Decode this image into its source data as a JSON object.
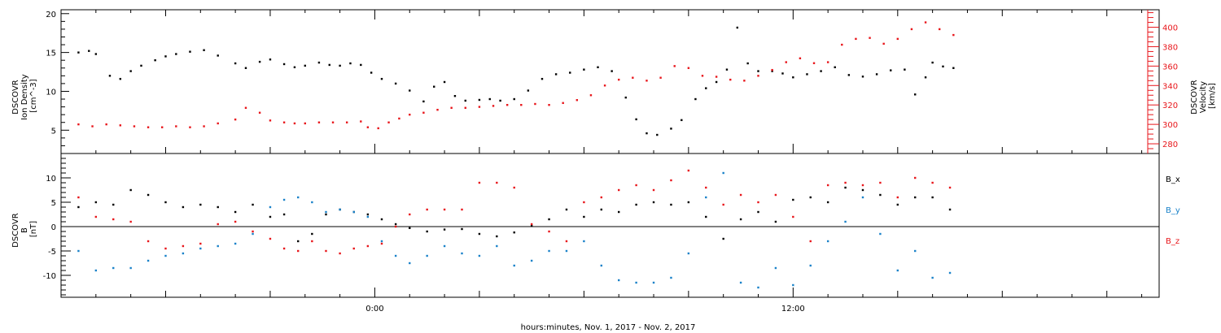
{
  "chart_data": [
    {
      "type": "scatter",
      "ylabel_lines": [
        "DSCOVR",
        "Ion Density",
        "[cm^-3]"
      ],
      "y2label_lines": [
        "DSCOVR",
        "Velocity",
        "[km/s]"
      ],
      "ylim": [
        2,
        20.5
      ],
      "y2lim": [
        270,
        418
      ],
      "y_ticks": [
        "5",
        "10",
        "15",
        "20"
      ],
      "y2_ticks": [
        "280",
        "300",
        "320",
        "340",
        "360",
        "380",
        "400"
      ],
      "series": [
        {
          "color": "#000000",
          "axis": "left",
          "x": [
            -8.5,
            -8.2,
            -8.0,
            -7.6,
            -7.3,
            -7.0,
            -6.7,
            -6.3,
            -6.0,
            -5.7,
            -5.3,
            -4.9,
            -4.5,
            -4.0,
            -3.7,
            -3.3,
            -3.0,
            -2.6,
            -2.3,
            -2.0,
            -1.6,
            -1.3,
            -1.0,
            -0.7,
            -0.4,
            -0.1,
            0.2,
            0.6,
            1.0,
            1.4,
            1.7,
            2.0,
            2.3,
            2.6,
            3.0,
            3.3,
            3.6,
            4.0,
            4.4,
            4.8,
            5.2,
            5.6,
            6.0,
            6.4,
            6.8,
            7.2,
            7.5,
            7.8,
            8.1,
            8.5,
            8.8,
            9.2,
            9.5,
            9.8,
            10.1,
            10.4,
            10.7,
            11.0,
            11.4,
            11.7,
            12.0,
            12.4,
            12.8,
            13.2,
            13.6,
            14.0,
            14.4,
            14.8,
            15.2,
            15.5,
            15.8,
            16.0,
            16.3,
            16.6
          ],
          "y": [
            15.0,
            15.2,
            14.8,
            12.0,
            11.6,
            12.6,
            13.3,
            14.0,
            14.5,
            14.8,
            15.1,
            15.3,
            14.6,
            13.6,
            13.0,
            13.8,
            14.1,
            13.5,
            13.1,
            13.3,
            13.7,
            13.4,
            13.3,
            13.6,
            13.4,
            12.4,
            11.6,
            11.0,
            10.1,
            8.7,
            10.6,
            11.2,
            9.4,
            8.8,
            8.9,
            9.0,
            8.8,
            9.0,
            10.1,
            11.6,
            12.2,
            12.4,
            12.8,
            13.1,
            12.6,
            9.2,
            6.4,
            4.6,
            4.4,
            5.2,
            6.3,
            9.0,
            10.4,
            11.2,
            12.8,
            18.2,
            13.6,
            12.6,
            12.6,
            12.3,
            11.8,
            12.2,
            12.6,
            13.1,
            12.1,
            11.9,
            12.2,
            12.7,
            12.8,
            9.6,
            11.8,
            13.7,
            13.2,
            13.0
          ]
        },
        {
          "color": "#e8161b",
          "axis": "right",
          "x": [
            -8.5,
            -8.1,
            -7.7,
            -7.3,
            -6.9,
            -6.5,
            -6.1,
            -5.7,
            -5.3,
            -4.9,
            -4.5,
            -4.0,
            -3.7,
            -3.3,
            -3.0,
            -2.6,
            -2.3,
            -2.0,
            -1.6,
            -1.2,
            -0.8,
            -0.4,
            -0.2,
            0.1,
            0.4,
            0.7,
            1.0,
            1.4,
            1.8,
            2.2,
            2.6,
            3.0,
            3.4,
            3.8,
            4.2,
            4.6,
            5.0,
            5.4,
            5.8,
            6.2,
            6.6,
            7.0,
            7.4,
            7.8,
            8.2,
            8.6,
            9.0,
            9.4,
            9.8,
            10.2,
            10.6,
            11.0,
            11.4,
            11.8,
            12.2,
            12.6,
            13.0,
            13.4,
            13.8,
            14.2,
            14.6,
            15.0,
            15.4,
            15.8,
            16.2,
            16.6
          ],
          "y": [
            300,
            298,
            300,
            299,
            298,
            297,
            297,
            298,
            297,
            298,
            301,
            305,
            317,
            312,
            304,
            302,
            301,
            301,
            302,
            302,
            302,
            303,
            297,
            296,
            302,
            306,
            310,
            312,
            315,
            317,
            317,
            318,
            319,
            320,
            320,
            321,
            320,
            322,
            325,
            330,
            340,
            346,
            348,
            345,
            348,
            360,
            358,
            350,
            349,
            346,
            345,
            350,
            356,
            364,
            368,
            363,
            364,
            382,
            388,
            389,
            383,
            388,
            398,
            405,
            398,
            392
          ]
        }
      ]
    },
    {
      "type": "scatter",
      "ylabel_lines": [
        "DSCOVR",
        "B",
        "[nT]"
      ],
      "ylim": [
        -14.5,
        15
      ],
      "y_ticks": [
        "-10",
        "-5",
        "0",
        "5",
        "10"
      ],
      "legend": [
        "B_x",
        "B_y",
        "B_z"
      ],
      "xlabel": "hours:minutes, Nov.  1, 2017 - Nov.  2, 2017",
      "x_ticks": [
        "0:00",
        "12:00"
      ],
      "xlim": [
        -9.0,
        22.5
      ],
      "series": [
        {
          "name": "B_x",
          "color": "#000000",
          "x": [
            -8.5,
            -8.0,
            -7.5,
            -7.0,
            -6.5,
            -6.0,
            -5.5,
            -5.0,
            -4.5,
            -4.0,
            -3.5,
            -3.0,
            -2.6,
            -2.2,
            -1.8,
            -1.4,
            -1.0,
            -0.6,
            -0.2,
            0.2,
            0.6,
            1.0,
            1.5,
            2.0,
            2.5,
            3.0,
            3.5,
            4.0,
            4.5,
            5.0,
            5.5,
            6.0,
            6.5,
            7.0,
            7.5,
            8.0,
            8.5,
            9.0,
            9.5,
            10.0,
            10.5,
            11.0,
            11.5,
            12.0,
            12.5,
            13.0,
            13.5,
            14.0,
            14.5,
            15.0,
            15.5,
            16.0,
            16.5
          ],
          "y": [
            4.0,
            5.0,
            4.5,
            7.5,
            6.5,
            5.0,
            4.0,
            4.5,
            4.0,
            3.0,
            4.5,
            2.0,
            2.5,
            -3.0,
            -1.5,
            2.5,
            3.5,
            3.0,
            2.5,
            1.5,
            0.5,
            -0.3,
            -1.0,
            -0.6,
            -0.5,
            -1.5,
            -2.0,
            -1.2,
            0.2,
            1.5,
            3.5,
            2.0,
            3.5,
            3.0,
            4.5,
            5.0,
            4.5,
            5.0,
            2.0,
            -2.5,
            1.5,
            3.0,
            1.0,
            5.5,
            6.0,
            5.0,
            8.0,
            7.5,
            6.5,
            4.5,
            6.0,
            6.0,
            3.5
          ]
        },
        {
          "name": "B_y",
          "color": "#1a82c9",
          "x": [
            -8.5,
            -8.0,
            -7.5,
            -7.0,
            -6.5,
            -6.0,
            -5.5,
            -5.0,
            -4.5,
            -4.0,
            -3.5,
            -3.0,
            -2.6,
            -2.2,
            -1.8,
            -1.4,
            -1.0,
            -0.6,
            -0.2,
            0.2,
            0.6,
            1.0,
            1.5,
            2.0,
            2.5,
            3.0,
            3.5,
            4.0,
            4.5,
            5.0,
            5.5,
            6.0,
            6.5,
            7.0,
            7.5,
            8.0,
            8.5,
            9.0,
            9.5,
            10.0,
            10.5,
            11.0,
            11.5,
            12.0,
            12.5,
            13.0,
            13.5,
            14.0,
            14.5,
            15.0,
            15.5,
            16.0,
            16.5
          ],
          "y": [
            -5.0,
            -9.0,
            -8.5,
            -8.5,
            -7.0,
            -6.0,
            -5.5,
            -4.5,
            -4.0,
            -3.5,
            -1.5,
            4.0,
            5.5,
            6.0,
            5.0,
            3.0,
            3.5,
            3.0,
            2.0,
            -3.0,
            -6.0,
            -7.5,
            -6.0,
            -4.0,
            -5.5,
            -6.0,
            -4.0,
            -8.0,
            -7.0,
            -5.0,
            -5.0,
            -3.0,
            -8.0,
            -11.0,
            -11.5,
            -11.5,
            -10.5,
            -5.5,
            6.0,
            11.0,
            -11.5,
            -12.5,
            -8.5,
            -12.0,
            -8.0,
            -3.0,
            1.0,
            6.0,
            -1.5,
            -9.0,
            -5.0,
            -10.5,
            -9.5
          ]
        },
        {
          "name": "B_z",
          "color": "#e8161b",
          "x": [
            -8.5,
            -8.0,
            -7.5,
            -7.0,
            -6.5,
            -6.0,
            -5.5,
            -5.0,
            -4.5,
            -4.0,
            -3.5,
            -3.0,
            -2.6,
            -2.2,
            -1.8,
            -1.4,
            -1.0,
            -0.6,
            -0.2,
            0.2,
            0.6,
            1.0,
            1.5,
            2.0,
            2.5,
            3.0,
            3.5,
            4.0,
            4.5,
            5.0,
            5.5,
            6.0,
            6.5,
            7.0,
            7.5,
            8.0,
            8.5,
            9.0,
            9.5,
            10.0,
            10.5,
            11.0,
            11.5,
            12.0,
            12.5,
            13.0,
            13.5,
            14.0,
            14.5,
            15.0,
            15.5,
            16.0,
            16.5
          ],
          "y": [
            6.0,
            2.0,
            1.5,
            1.0,
            -3.0,
            -4.5,
            -4.0,
            -3.5,
            0.5,
            1.0,
            -1.0,
            -2.5,
            -4.5,
            -5.0,
            -3.0,
            -5.0,
            -5.5,
            -4.5,
            -4.0,
            -3.5,
            0.0,
            2.5,
            3.5,
            3.5,
            3.5,
            9.0,
            9.0,
            8.0,
            0.5,
            -1.0,
            -3.0,
            5.0,
            6.0,
            7.5,
            8.5,
            7.5,
            9.5,
            11.5,
            8.0,
            4.5,
            6.5,
            5.0,
            6.5,
            2.0,
            -3.0,
            8.5,
            9.0,
            8.5,
            9.0,
            6.0,
            10.0,
            9.0,
            8.0
          ]
        }
      ]
    }
  ]
}
